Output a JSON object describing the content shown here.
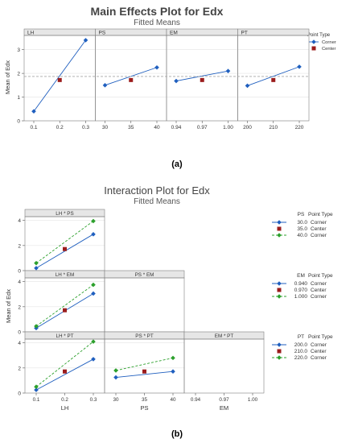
{
  "colors": {
    "blue": "#1f5fbf",
    "red": "#9b1c1c",
    "green": "#2ca02c",
    "panel_header": "#e6e6e6",
    "panel_border": "#808080",
    "grid": "#e4e4e4",
    "ref_line": "#a6a6a6"
  },
  "chart_data": [
    {
      "type": "line",
      "title": "Main Effects Plot for Edx",
      "subtitle": "Fitted Means",
      "caption": "(a)",
      "ylabel": "Mean of Edx",
      "ylim": [
        0,
        3.6
      ],
      "yticks": [
        "0",
        "1",
        "2",
        "3"
      ],
      "reference_line": 1.87,
      "legend": {
        "title": "Point Type",
        "entries": [
          "Corner",
          "Center"
        ]
      },
      "panels": [
        {
          "label": "LH",
          "x": [
            "0.1",
            "0.2",
            "0.3"
          ],
          "corner": [
            0.4,
            null,
            3.4
          ],
          "center": [
            null,
            1.72,
            null
          ]
        },
        {
          "label": "PS",
          "x": [
            "30",
            "35",
            "40"
          ],
          "corner": [
            1.5,
            null,
            2.25
          ],
          "center": [
            null,
            1.72,
            null
          ]
        },
        {
          "label": "EM",
          "x": [
            "0.94",
            "0.97",
            "1.00"
          ],
          "corner": [
            1.68,
            null,
            2.1
          ],
          "center": [
            null,
            1.72,
            null
          ]
        },
        {
          "label": "PT",
          "x": [
            "200",
            "210",
            "220"
          ],
          "corner": [
            1.48,
            null,
            2.28
          ],
          "center": [
            null,
            1.72,
            null
          ]
        }
      ]
    },
    {
      "type": "line",
      "title": "Interaction Plot for Edx",
      "subtitle": "Fitted Means",
      "caption": "(b)",
      "ylabel": "Mean of Edx",
      "ylim": [
        0,
        4.3
      ],
      "yticks": [
        "0",
        "2",
        "4"
      ],
      "col_labels": [
        "LH",
        "PS",
        "EM"
      ],
      "col_ticks": [
        [
          "0.1",
          "0.2",
          "0.3"
        ],
        [
          "30",
          "35",
          "40"
        ],
        [
          "0.94",
          "0.97",
          "1.00"
        ]
      ],
      "legends": [
        {
          "factor": "PS",
          "title": "Point Type",
          "entries": [
            {
              "level": "30.0",
              "type": "Corner"
            },
            {
              "level": "35.0",
              "type": "Center"
            },
            {
              "level": "40.0",
              "type": "Corner"
            }
          ]
        },
        {
          "factor": "EM",
          "title": "Point Type",
          "entries": [
            {
              "level": "0.940",
              "type": "Corner"
            },
            {
              "level": "0.970",
              "type": "Center"
            },
            {
              "level": "1.000",
              "type": "Corner"
            }
          ]
        },
        {
          "factor": "PT",
          "title": "Point Type",
          "entries": [
            {
              "level": "200.0",
              "type": "Corner"
            },
            {
              "level": "210.0",
              "type": "Center"
            },
            {
              "level": "220.0",
              "type": "Corner"
            }
          ]
        }
      ],
      "panels": [
        {
          "label": "LH * PS",
          "row": 0,
          "col": 0,
          "series": [
            {
              "style": "low",
              "values": [
                0.2,
                null,
                2.9
              ]
            },
            {
              "style": "center",
              "values": [
                null,
                1.72,
                null
              ]
            },
            {
              "style": "high",
              "values": [
                0.6,
                null,
                3.95
              ]
            }
          ]
        },
        {
          "label": "LH * EM",
          "row": 1,
          "col": 0,
          "series": [
            {
              "style": "low",
              "values": [
                0.3,
                null,
                3.05
              ]
            },
            {
              "style": "center",
              "values": [
                null,
                1.72,
                null
              ]
            },
            {
              "style": "high",
              "values": [
                0.45,
                null,
                3.75
              ]
            }
          ]
        },
        {
          "label": "PS * EM",
          "row": 1,
          "col": 1,
          "series": []
        },
        {
          "label": "LH * PT",
          "row": 2,
          "col": 0,
          "series": [
            {
              "style": "low",
              "values": [
                0.25,
                null,
                2.7
              ]
            },
            {
              "style": "center",
              "values": [
                null,
                1.72,
                null
              ]
            },
            {
              "style": "high",
              "values": [
                0.5,
                null,
                4.1
              ]
            }
          ]
        },
        {
          "label": "PS * PT",
          "row": 2,
          "col": 1,
          "series": [
            {
              "style": "low",
              "values": [
                1.25,
                null,
                1.72
              ]
            },
            {
              "style": "center",
              "values": [
                null,
                1.72,
                null
              ]
            },
            {
              "style": "high",
              "values": [
                1.8,
                null,
                2.8
              ]
            }
          ]
        },
        {
          "label": "EM * PT",
          "row": 2,
          "col": 2,
          "series": []
        }
      ]
    }
  ]
}
